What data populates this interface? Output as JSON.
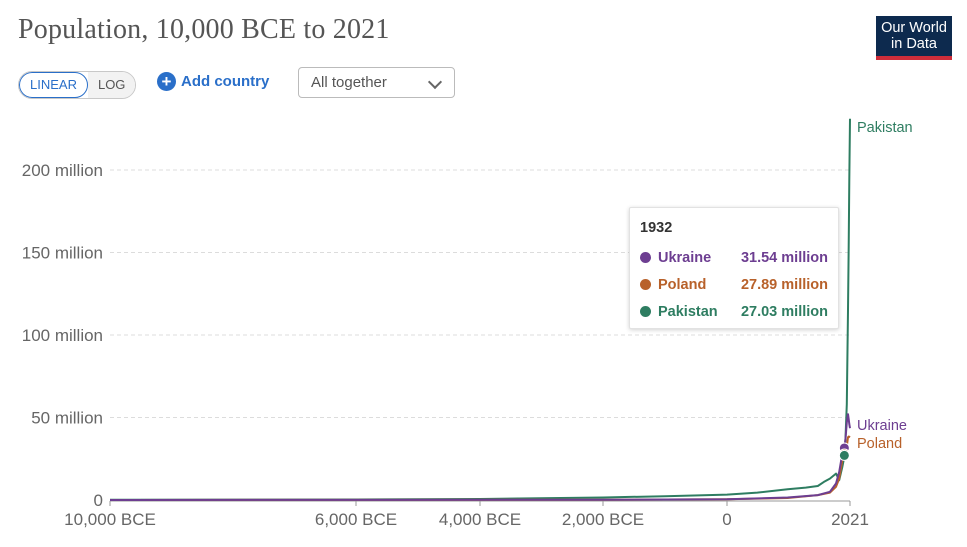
{
  "title": "Population, 10,000 BCE to 2021",
  "logo": {
    "line1": "Our World",
    "line2": "in Data"
  },
  "controls": {
    "linear_label": "LINEAR",
    "log_label": "LOG",
    "add_country_label": "Add country",
    "plus_glyph": "+",
    "select_value": "All together"
  },
  "colors": {
    "Ukraine": "#6d3e91",
    "Poland": "#b8612a",
    "Pakistan": "#2e7d61",
    "accent": "#2a6fc9"
  },
  "chart_data": {
    "type": "line",
    "title": "Population, 10,000 BCE to 2021",
    "xlabel": "",
    "ylabel": "",
    "xlim": [
      -10000,
      2021
    ],
    "ylim": [
      0,
      230000000
    ],
    "y_ticks": [
      0,
      50000000,
      100000000,
      150000000,
      200000000
    ],
    "y_tick_labels": [
      "0",
      "50 million",
      "100 million",
      "150 million",
      "200 million"
    ],
    "x_ticks": [
      -10000,
      -6000,
      -4000,
      -2000,
      0,
      2021
    ],
    "x_tick_labels": [
      "10,000 BCE",
      "6,000 BCE",
      "4,000 BCE",
      "2,000 BCE",
      "0",
      "2021"
    ],
    "grid": true,
    "legend": "inline-right",
    "series": [
      {
        "name": "Pakistan",
        "x": [
          -10000,
          -6000,
          -4000,
          -2000,
          -1000,
          0,
          500,
          1000,
          1300,
          1500,
          1600,
          1700,
          1800,
          1850,
          1900,
          1920,
          1932,
          1950,
          1970,
          1990,
          2000,
          2010,
          2021
        ],
        "y": [
          100000,
          300000,
          600000,
          1500000,
          2300000,
          3300000,
          4500000,
          6500000,
          7500000,
          8500000,
          11000000,
          13000000,
          16000000,
          12000000,
          20000000,
          24000000,
          27030000,
          37500000,
          58000000,
          115000000,
          154000000,
          194000000,
          231000000
        ]
      },
      {
        "name": "Ukraine",
        "x": [
          -10000,
          -2000,
          0,
          1000,
          1500,
          1700,
          1800,
          1850,
          1900,
          1914,
          1932,
          1950,
          1970,
          1990,
          2000,
          2010,
          2021
        ],
        "y": [
          10000,
          200000,
          500000,
          1500000,
          3000000,
          5000000,
          10000000,
          17000000,
          28000000,
          33000000,
          31540000,
          37000000,
          47000000,
          52000000,
          49000000,
          46000000,
          43500000
        ]
      },
      {
        "name": "Poland",
        "x": [
          -10000,
          -2000,
          0,
          1000,
          1500,
          1700,
          1800,
          1850,
          1900,
          1914,
          1932,
          1950,
          1970,
          1990,
          2000,
          2010,
          2021
        ],
        "y": [
          10000,
          200000,
          400000,
          1200000,
          3000000,
          4500000,
          8000000,
          13000000,
          24000000,
          28000000,
          27890000,
          25000000,
          32500000,
          38000000,
          38500000,
          38300000,
          38000000
        ]
      }
    ],
    "tooltip": {
      "year": "1932",
      "rows": [
        {
          "name": "Ukraine",
          "value": "31.54 million"
        },
        {
          "name": "Poland",
          "value": "27.89 million"
        },
        {
          "name": "Pakistan",
          "value": "27.03 million"
        }
      ]
    }
  }
}
